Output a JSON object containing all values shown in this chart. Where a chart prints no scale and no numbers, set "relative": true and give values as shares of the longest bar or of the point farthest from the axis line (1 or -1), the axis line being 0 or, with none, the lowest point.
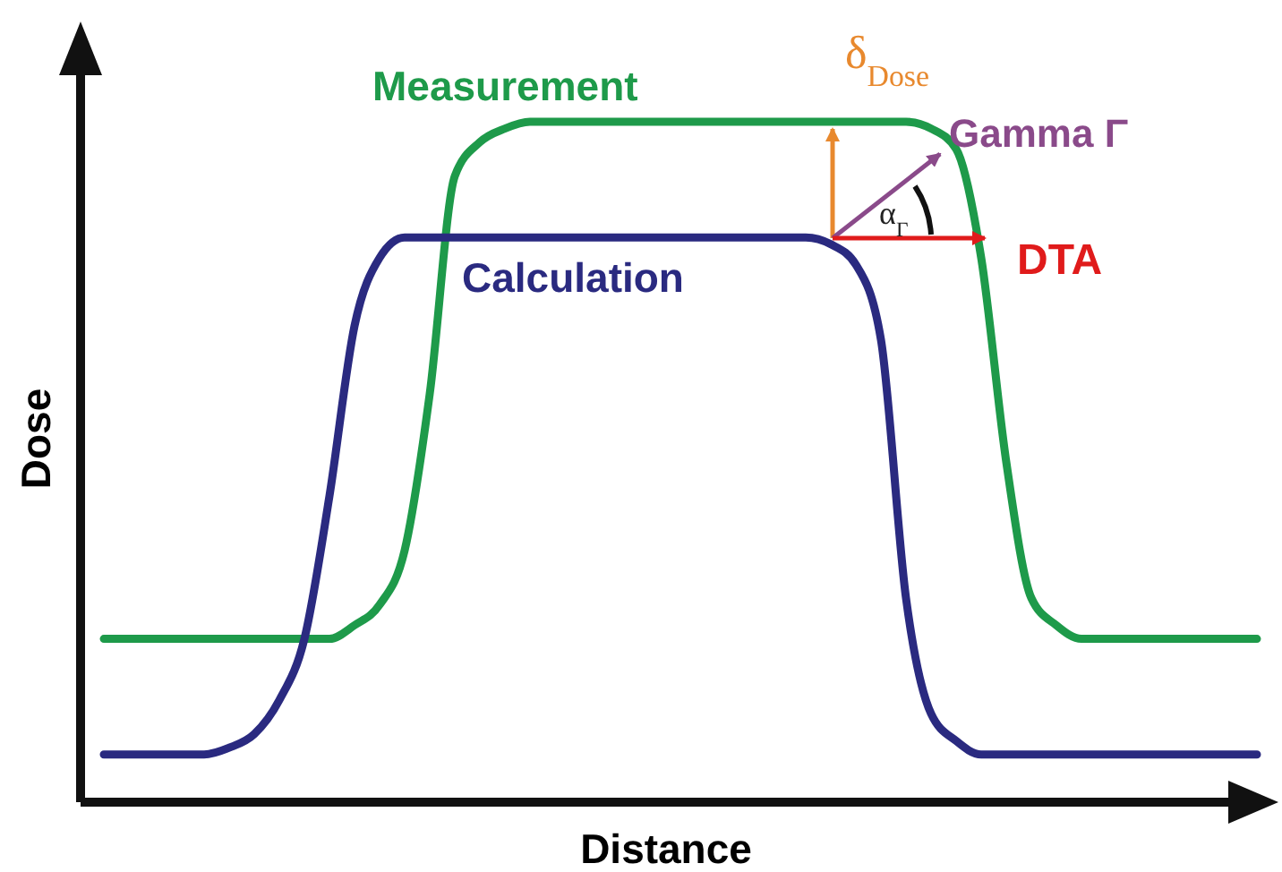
{
  "chart_data": {
    "type": "line",
    "relative": true,
    "xlabel": "Distance",
    "ylabel": "Dose",
    "categories": [
      null,
      null,
      null,
      null,
      null,
      null,
      null,
      null,
      null,
      null,
      null,
      null,
      null,
      null,
      null,
      null,
      null,
      null,
      null,
      null,
      null,
      null,
      null,
      null,
      null,
      null,
      null,
      null,
      null,
      null,
      null,
      null,
      null,
      null,
      null,
      null,
      null,
      null,
      null,
      null,
      null,
      null,
      null,
      null,
      null,
      null,
      null
    ],
    "series": [
      {
        "name": "Measurement",
        "color": "#1e9a4a",
        "values": [
          0.24,
          0.24,
          0.24,
          0.24,
          0.24,
          0.24,
          0.24,
          0.24,
          0.24,
          0.24,
          0.26,
          0.29,
          0.37,
          0.6,
          0.92,
          0.97,
          0.99,
          1,
          1,
          1,
          1,
          1,
          1,
          1,
          1,
          1,
          1,
          1,
          1,
          1,
          1,
          1,
          1,
          0.99,
          0.96,
          0.8,
          0.5,
          0.3,
          0.26,
          0.24,
          0.24,
          0.24,
          0.24,
          0.24,
          0.24,
          0.24,
          0.24
        ]
      },
      {
        "name": "Calculation",
        "color": "#2a2a80",
        "values": [
          0.07,
          0.07,
          0.07,
          0.07,
          0.07,
          0.08,
          0.1,
          0.15,
          0.24,
          0.45,
          0.7,
          0.8,
          0.83,
          0.83,
          0.83,
          0.83,
          0.83,
          0.83,
          0.83,
          0.83,
          0.83,
          0.83,
          0.83,
          0.83,
          0.83,
          0.83,
          0.83,
          0.83,
          0.83,
          0.82,
          0.79,
          0.68,
          0.3,
          0.13,
          0.09,
          0.07,
          0.07,
          0.07,
          0.07,
          0.07,
          0.07,
          0.07,
          0.07,
          0.07,
          0.07,
          0.07,
          0.07
        ]
      }
    ],
    "annotations": [
      "δ$_{Dose}$",
      "Gamma Γ",
      "α$_{Γ}$",
      "DTA"
    ]
  }
}
